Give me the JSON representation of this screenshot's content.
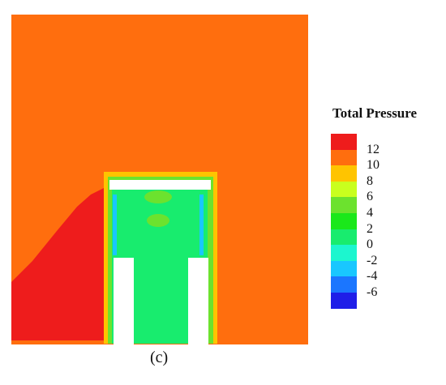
{
  "figure": {
    "caption": "(c)"
  },
  "legend": {
    "title": "Total Pressure",
    "labels": [
      "12",
      "10",
      "8",
      "6",
      "4",
      "2",
      "0",
      "-2",
      "-4",
      "-6"
    ],
    "colors": [
      "#ee1c1c",
      "#ff6e0e",
      "#ffc400",
      "#c9ff1e",
      "#6ce22e",
      "#1ae81a",
      "#18ec6e",
      "#1cf6cf",
      "#19c7ff",
      "#1b76ff",
      "#1f1ee8"
    ]
  },
  "field_colors": {
    "background": "#ff6e0e",
    "high": "#ee1c1c",
    "inner": "#18ec6e",
    "cap": "#ffffff",
    "edge_yellow": "#ffc400",
    "edge_green": "#6ce22e"
  }
}
